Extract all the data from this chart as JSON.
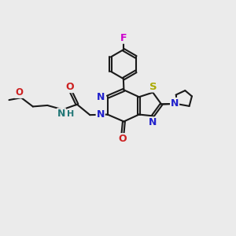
{
  "bg_color": "#ebebeb",
  "bond_color": "#1a1a1a",
  "bond_width": 1.5,
  "atom_colors": {
    "N": "#2020cc",
    "O": "#cc2020",
    "S": "#aaaa00",
    "F": "#cc00cc",
    "NH": "#227777",
    "C": "#1a1a1a"
  }
}
